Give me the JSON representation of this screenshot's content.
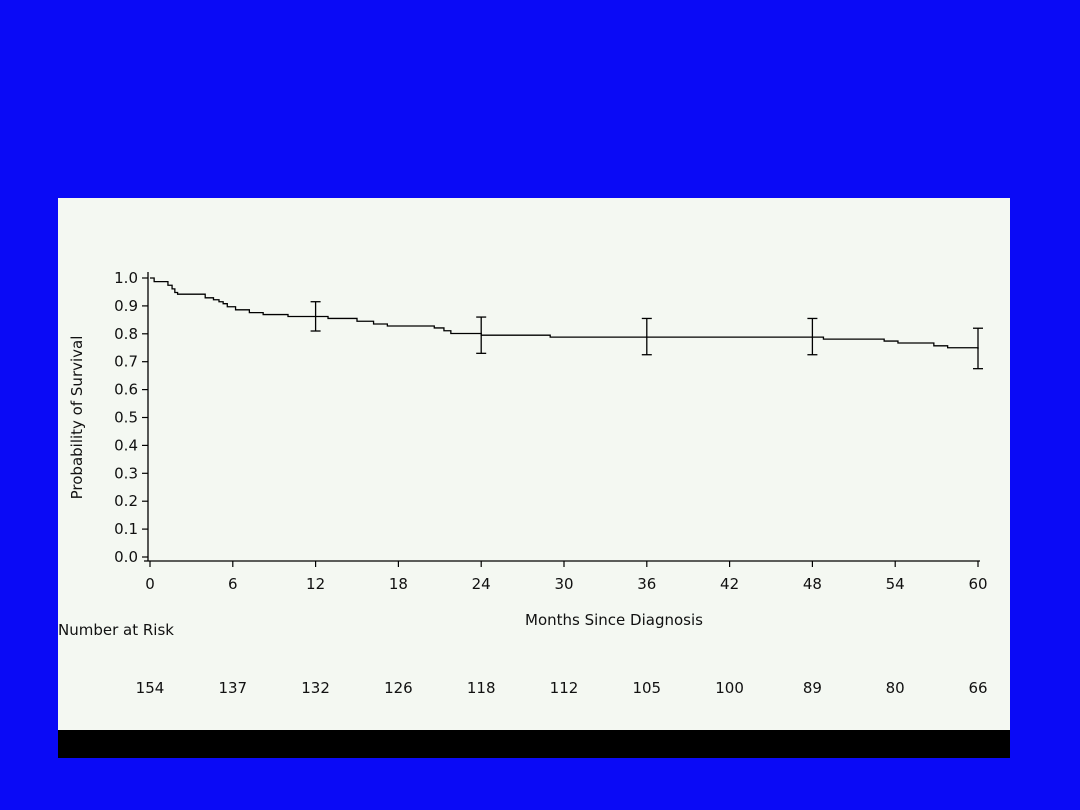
{
  "colors": {
    "background": "#0a0af6",
    "panel": "#f4f8f2",
    "line": "#000000"
  },
  "chart_data": {
    "type": "line",
    "xlabel": "Months Since Diagnosis",
    "ylabel": "Probability of Survival",
    "xlim": [
      0,
      60
    ],
    "ylim": [
      0,
      1
    ],
    "x_ticks": [
      "0",
      "6",
      "12",
      "18",
      "24",
      "30",
      "36",
      "42",
      "48",
      "54",
      "60"
    ],
    "y_ticks": [
      "0.0",
      "0.1",
      "0.2",
      "0.3",
      "0.4",
      "0.5",
      "0.6",
      "0.7",
      "0.8",
      "0.9",
      "1.0"
    ],
    "grid": false,
    "step": true,
    "series": [
      {
        "x": [
          0,
          0.3,
          1.3,
          1.6,
          1.8,
          2.0,
          4.0,
          4.6,
          5.0,
          5.3,
          5.6,
          6.2,
          7.2,
          8.2,
          10.0,
          12.9,
          15.0,
          16.2,
          17.2,
          20.6,
          21.3,
          21.8,
          24.0,
          29.0,
          35.0,
          38.0,
          48.0,
          48.8,
          53.2,
          54.2,
          56.8,
          57.8,
          60.0
        ],
        "y": [
          1.0,
          0.987,
          0.974,
          0.961,
          0.948,
          0.942,
          0.929,
          0.922,
          0.915,
          0.908,
          0.897,
          0.886,
          0.876,
          0.869,
          0.862,
          0.855,
          0.845,
          0.835,
          0.828,
          0.821,
          0.811,
          0.801,
          0.795,
          0.788,
          0.788,
          0.788,
          0.788,
          0.781,
          0.774,
          0.767,
          0.757,
          0.75,
          0.745
        ]
      }
    ],
    "error_bars": [
      {
        "x": 12,
        "y": 0.862,
        "low": 0.81,
        "high": 0.915
      },
      {
        "x": 24,
        "y": 0.795,
        "low": 0.73,
        "high": 0.86
      },
      {
        "x": 36,
        "y": 0.788,
        "low": 0.725,
        "high": 0.855
      },
      {
        "x": 48,
        "y": 0.788,
        "low": 0.725,
        "high": 0.855
      },
      {
        "x": 60,
        "y": 0.745,
        "low": 0.675,
        "high": 0.82
      }
    ],
    "risk_table": {
      "label": "Number at Risk",
      "times": [
        0,
        6,
        12,
        18,
        24,
        30,
        36,
        42,
        48,
        54,
        60
      ],
      "counts": [
        "154",
        "137",
        "132",
        "126",
        "118",
        "112",
        "105",
        "100",
        "89",
        "80",
        "66"
      ]
    }
  }
}
